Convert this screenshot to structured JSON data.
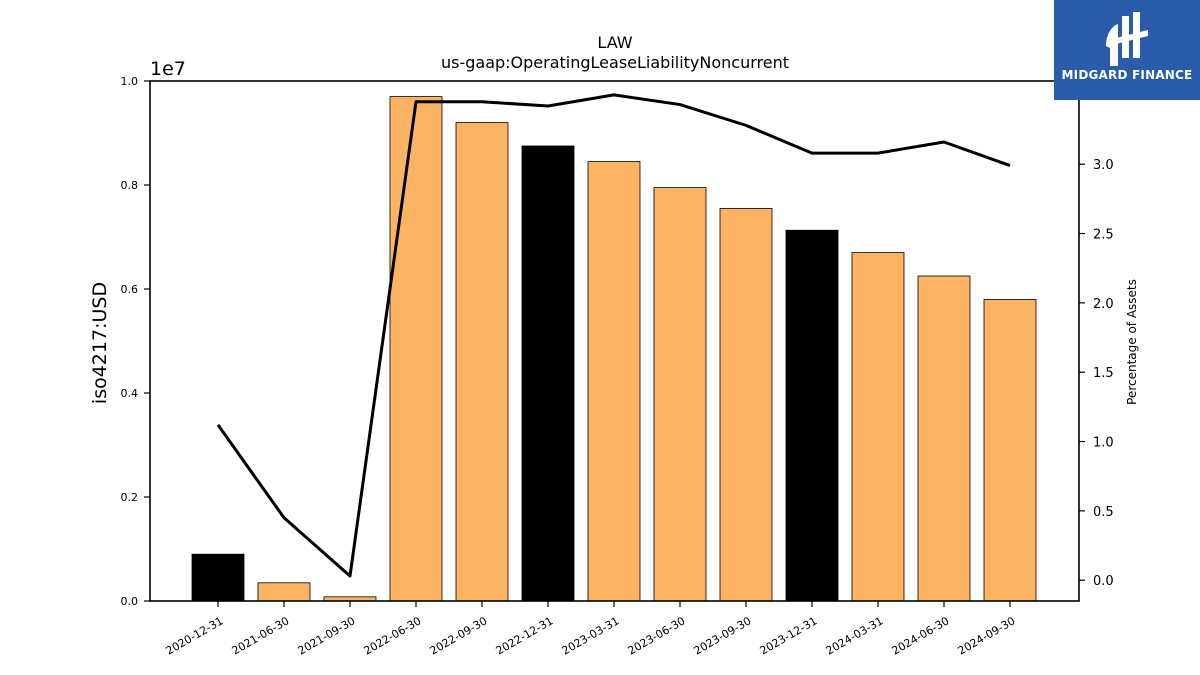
{
  "logo": {
    "text": "MIDGARD FINANCE"
  },
  "chart_data": {
    "type": "bar",
    "title": "LAW",
    "subtitle": "us-gaap:OperatingLeaseLiabilityNoncurrent",
    "ylabel": "iso4217:USD",
    "y_offset_label": "1e7",
    "y2label": "Percentage of Assets",
    "categories": [
      "2020-12-31",
      "2021-06-30",
      "2021-09-30",
      "2022-06-30",
      "2022-09-30",
      "2022-12-31",
      "2023-03-31",
      "2023-06-30",
      "2023-09-30",
      "2023-12-31",
      "2024-03-31",
      "2024-06-30",
      "2024-09-30"
    ],
    "series": [
      {
        "values": [
          900000,
          350000,
          80000,
          9700000,
          9200000,
          8750000,
          8450000,
          7950000,
          7550000,
          7130000,
          6700000,
          6250000,
          5800000
        ]
      },
      {
        "axis": "right",
        "values": [
          1.12,
          0.45,
          0.03,
          3.45,
          3.45,
          3.42,
          3.5,
          3.43,
          3.28,
          3.08,
          3.08,
          3.16,
          2.99
        ]
      }
    ],
    "bar_colors": [
      "#000000",
      "#fdb462",
      "#fdb462",
      "#fdb462",
      "#fdb462",
      "#000000",
      "#fdb462",
      "#fdb462",
      "#fdb462",
      "#000000",
      "#fdb462",
      "#fdb462",
      "#fdb462"
    ],
    "line_color": "#000000",
    "yticks": [
      "0.0",
      "0.2",
      "0.4",
      "0.6",
      "0.8",
      "1.0"
    ],
    "y2ticks": [
      "0.0",
      "0.5",
      "1.0",
      "1.5",
      "2.0",
      "2.5",
      "3.0",
      "3.5"
    ],
    "ylim": [
      0,
      10000000
    ],
    "y2lim": [
      -0.15,
      3.6
    ],
    "grid": false,
    "legend": "none"
  }
}
